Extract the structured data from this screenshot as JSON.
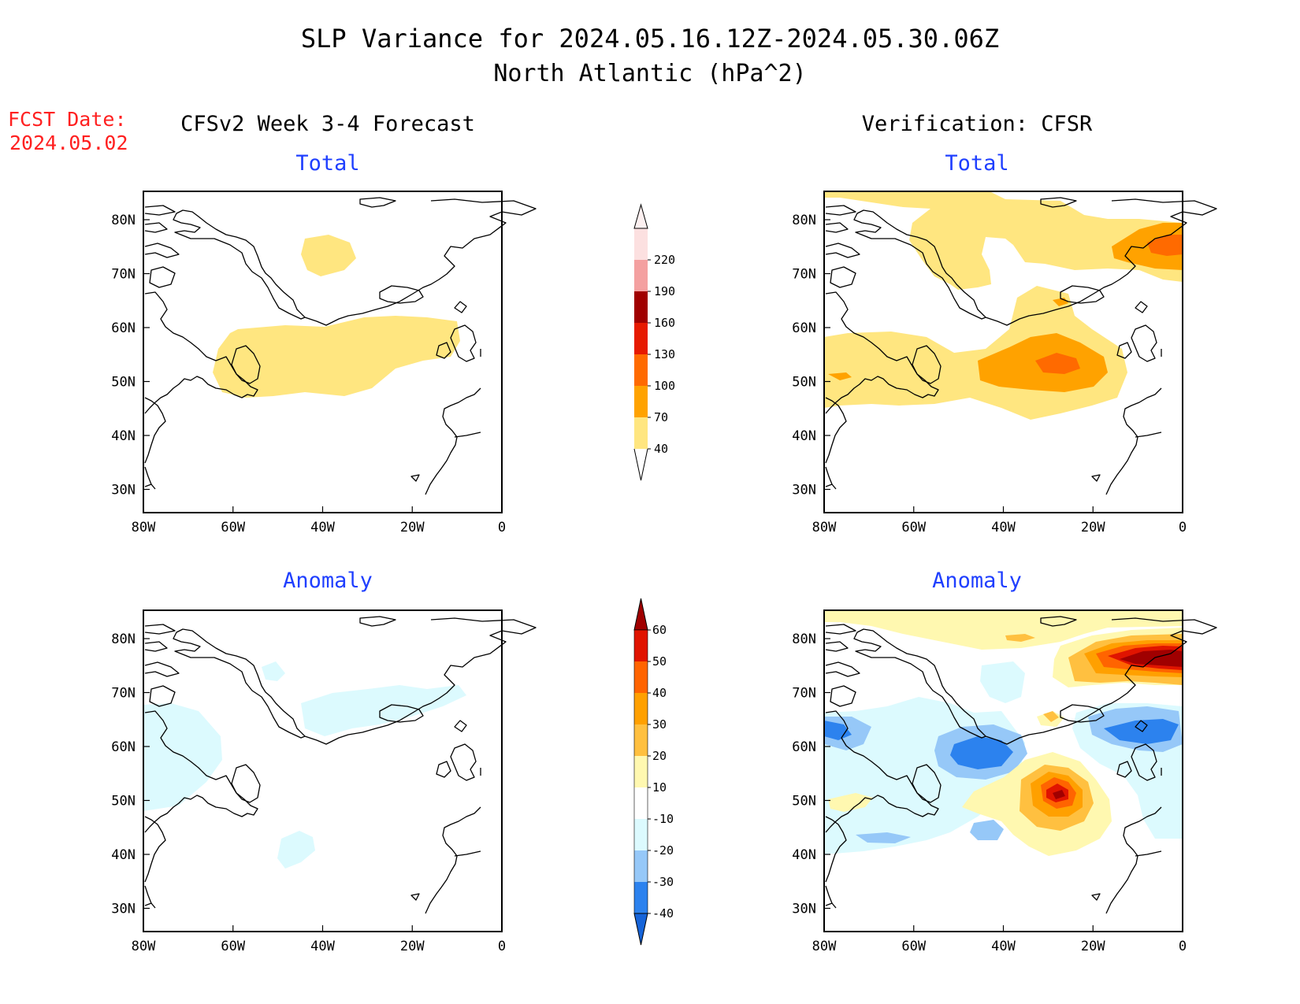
{
  "header": {
    "title_line1": "SLP Variance for 2024.05.16.12Z-2024.05.30.06Z",
    "title_line2": "North Atlantic (hPa^2)"
  },
  "fcst": {
    "label": "FCST Date:",
    "date": "2024.05.02"
  },
  "columns": {
    "left_title": "CFSv2 Week 3-4 Forecast",
    "right_title": "Verification: CFSR"
  },
  "panel_titles": {
    "total": "Total",
    "anomaly": "Anomaly"
  },
  "axes": {
    "lon_ticks": [
      "80W",
      "60W",
      "40W",
      "20W",
      "0"
    ],
    "lat_ticks": [
      "80N",
      "70N",
      "60N",
      "50N",
      "40N",
      "30N"
    ]
  },
  "colors": {
    "title_blue": "#1f3fff",
    "fcst_red": "#ff2020"
  },
  "colorbars": {
    "total": {
      "labels": [
        "40",
        "70",
        "100",
        "130",
        "160",
        "190",
        "220"
      ],
      "colors": [
        "#ffe680",
        "#ffa200",
        "#ff6a00",
        "#e61a00",
        "#a00000",
        "#f4a0a0",
        "#fce0e0"
      ]
    },
    "anomaly": {
      "labels": [
        "-40",
        "-30",
        "-20",
        "-10",
        "10",
        "20",
        "30",
        "40",
        "50",
        "60"
      ],
      "colors": [
        "#1664d9",
        "#2c82ee",
        "#96c8f8",
        "#dcfafe",
        "#ffffff",
        "#fff8b0",
        "#ffc040",
        "#ffa000",
        "#ff6400",
        "#e01400",
        "#a00000"
      ]
    }
  }
}
